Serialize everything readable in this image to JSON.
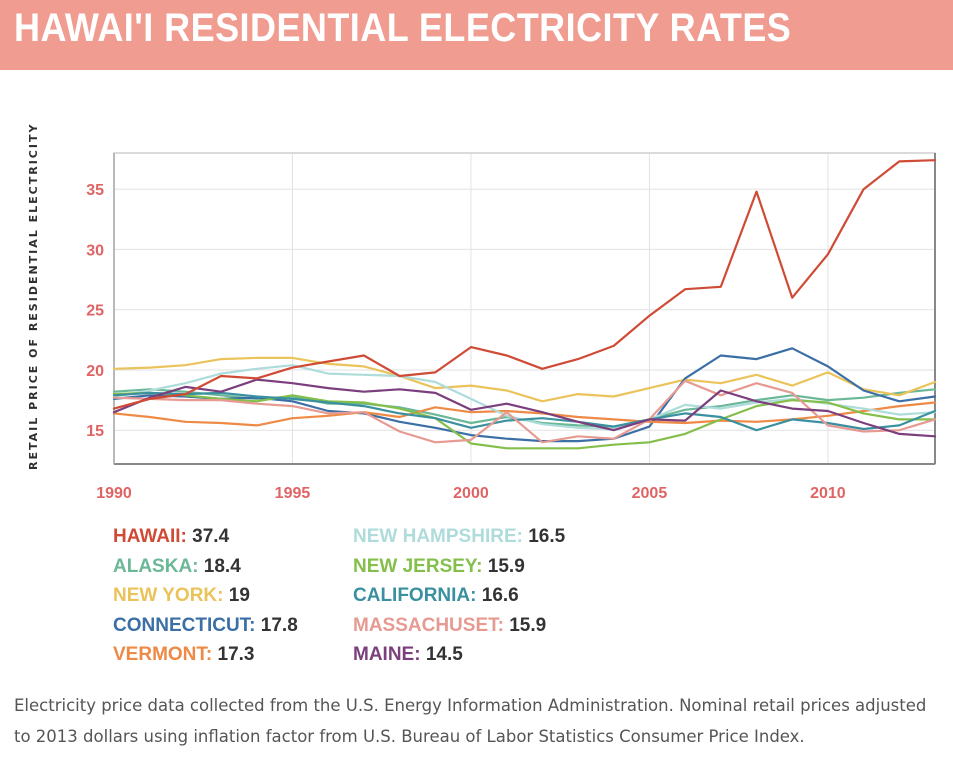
{
  "header": {
    "title": "HAWAI'I RESIDENTIAL ELECTRICITY RATES"
  },
  "caption": "Electricity price data collected from the U.S. Energy Information Administration. Nominal retail prices adjusted to 2013 dollars using inflation factor from U.S. Bureau of Labor Statistics Consumer Price Index.",
  "chart_data": {
    "type": "line",
    "title": "HAWAI'I RESIDENTIAL ELECTRICITY RATES",
    "xlabel": "",
    "ylabel": "RETAIL PRICE OF RESIDENTIAL ELECTRICITY",
    "xlim": [
      1990,
      2013
    ],
    "ylim": [
      12.2,
      38
    ],
    "x_ticks": [
      "1990",
      "1995",
      "2000",
      "2005",
      "2010"
    ],
    "y_ticks": [
      "15",
      "20",
      "25",
      "30",
      "35"
    ],
    "grid": true,
    "legend_position": "bottom",
    "x": [
      1990,
      1991,
      1992,
      1993,
      1994,
      1995,
      1996,
      1997,
      1998,
      1999,
      2000,
      2001,
      2002,
      2003,
      2004,
      2005,
      2006,
      2007,
      2008,
      2009,
      2010,
      2011,
      2012,
      2013
    ],
    "series": [
      {
        "name": "HAWAII",
        "color": "#d04b35",
        "latest": "37.4",
        "values": [
          16.8,
          17.6,
          18.0,
          19.5,
          19.3,
          20.2,
          20.7,
          21.2,
          19.5,
          19.8,
          21.9,
          21.2,
          20.1,
          20.9,
          22.0,
          24.5,
          26.7,
          26.9,
          34.8,
          26.0,
          29.6,
          35.0,
          37.3,
          37.4
        ]
      },
      {
        "name": "ALASKA",
        "color": "#6ab898",
        "latest": "18.4",
        "values": [
          18.2,
          18.4,
          18.2,
          17.9,
          17.6,
          17.8,
          17.2,
          17.2,
          16.9,
          16.3,
          15.6,
          16.1,
          15.6,
          15.4,
          15.3,
          15.9,
          16.7,
          17.0,
          17.5,
          17.9,
          17.5,
          17.7,
          18.1,
          18.4
        ]
      },
      {
        "name": "NEW YORK",
        "color": "#eac35a",
        "latest": "19",
        "values": [
          20.1,
          20.2,
          20.4,
          20.9,
          21.0,
          21.0,
          20.5,
          20.3,
          19.5,
          18.5,
          18.7,
          18.3,
          17.4,
          18.0,
          17.8,
          18.5,
          19.2,
          18.9,
          19.6,
          18.7,
          19.8,
          18.4,
          17.9,
          19.0
        ]
      },
      {
        "name": "CONNECTICUT",
        "color": "#3b6fa6",
        "latest": "17.8",
        "values": [
          17.6,
          17.9,
          17.8,
          17.6,
          17.7,
          17.4,
          16.6,
          16.4,
          15.7,
          15.2,
          14.6,
          14.3,
          14.1,
          14.1,
          14.3,
          15.3,
          19.3,
          21.2,
          20.9,
          21.8,
          20.3,
          18.3,
          17.4,
          17.8
        ]
      },
      {
        "name": "VERMONT",
        "color": "#ee8a45",
        "latest": "17.3",
        "values": [
          16.4,
          16.1,
          15.7,
          15.6,
          15.4,
          16.0,
          16.2,
          16.5,
          16.1,
          16.9,
          16.5,
          16.6,
          16.4,
          16.1,
          15.9,
          15.7,
          15.6,
          15.8,
          15.7,
          15.9,
          16.2,
          16.6,
          17.0,
          17.3
        ]
      },
      {
        "name": "NEW HAMPSHIRE",
        "color": "#aedcdb",
        "latest": "16.5",
        "values": [
          17.8,
          18.3,
          18.9,
          19.7,
          20.1,
          20.4,
          19.7,
          19.6,
          19.5,
          19.0,
          17.6,
          16.2,
          15.5,
          15.2,
          15.1,
          15.9,
          17.1,
          16.8,
          17.3,
          17.6,
          17.2,
          16.8,
          16.3,
          16.5
        ]
      },
      {
        "name": "NEW JERSEY",
        "color": "#83bf4a",
        "latest": "15.9",
        "values": [
          18.0,
          18.1,
          17.9,
          17.6,
          17.4,
          17.9,
          17.4,
          17.3,
          16.8,
          16.0,
          13.9,
          13.5,
          13.5,
          13.5,
          13.8,
          14.0,
          14.7,
          15.9,
          17.0,
          17.5,
          17.3,
          16.4,
          15.9,
          15.9
        ]
      },
      {
        "name": "CALIFORNIA",
        "color": "#3b90a0",
        "latest": "16.6",
        "values": [
          17.9,
          18.1,
          18.0,
          18.1,
          17.8,
          17.6,
          17.3,
          17.0,
          16.4,
          16.0,
          15.2,
          15.8,
          16.0,
          15.7,
          15.3,
          15.9,
          16.4,
          16.1,
          15.0,
          15.9,
          15.6,
          15.1,
          15.4,
          16.6
        ]
      },
      {
        "name": "MASSACHUSET",
        "color": "#e79a92",
        "latest": "15.9",
        "values": [
          17.7,
          17.6,
          17.5,
          17.5,
          17.2,
          17.0,
          16.4,
          16.5,
          14.9,
          14.0,
          14.2,
          16.5,
          14.0,
          14.5,
          14.3,
          15.9,
          19.1,
          17.9,
          18.9,
          18.1,
          15.4,
          14.9,
          15.0,
          15.9
        ]
      },
      {
        "name": "MAINE",
        "color": "#7c3f7e",
        "latest": "14.5",
        "values": [
          16.5,
          17.7,
          18.6,
          18.2,
          19.2,
          18.9,
          18.5,
          18.2,
          18.4,
          18.1,
          16.7,
          17.2,
          16.5,
          15.7,
          15.0,
          15.9,
          15.8,
          18.3,
          17.4,
          16.8,
          16.6,
          15.6,
          14.7,
          14.5
        ]
      }
    ]
  }
}
